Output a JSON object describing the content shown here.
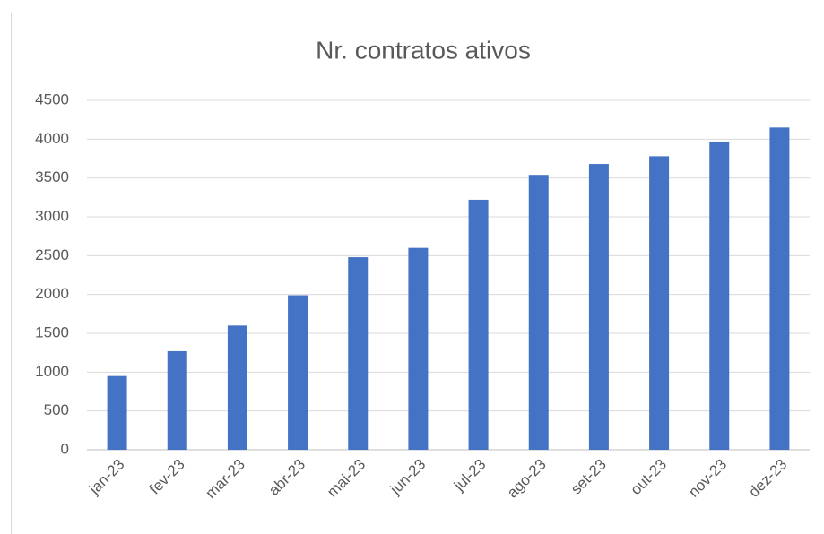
{
  "chart_data": {
    "type": "bar",
    "title": "Nr. contratos ativos",
    "categories": [
      "jan-23",
      "fev-23",
      "mar-23",
      "abr-23",
      "mai-23",
      "jun-23",
      "jul-23",
      "ago-23",
      "set-23",
      "out-23",
      "nov-23",
      "dez-23"
    ],
    "values": [
      950,
      1270,
      1600,
      1990,
      2480,
      2600,
      3220,
      3540,
      3680,
      3780,
      3970,
      4150
    ],
    "color": "#4472c4",
    "ylim": [
      0,
      4500
    ],
    "yticks": [
      0,
      500,
      1000,
      1500,
      2000,
      2500,
      3000,
      3500,
      4000,
      4500
    ],
    "grid": true
  }
}
